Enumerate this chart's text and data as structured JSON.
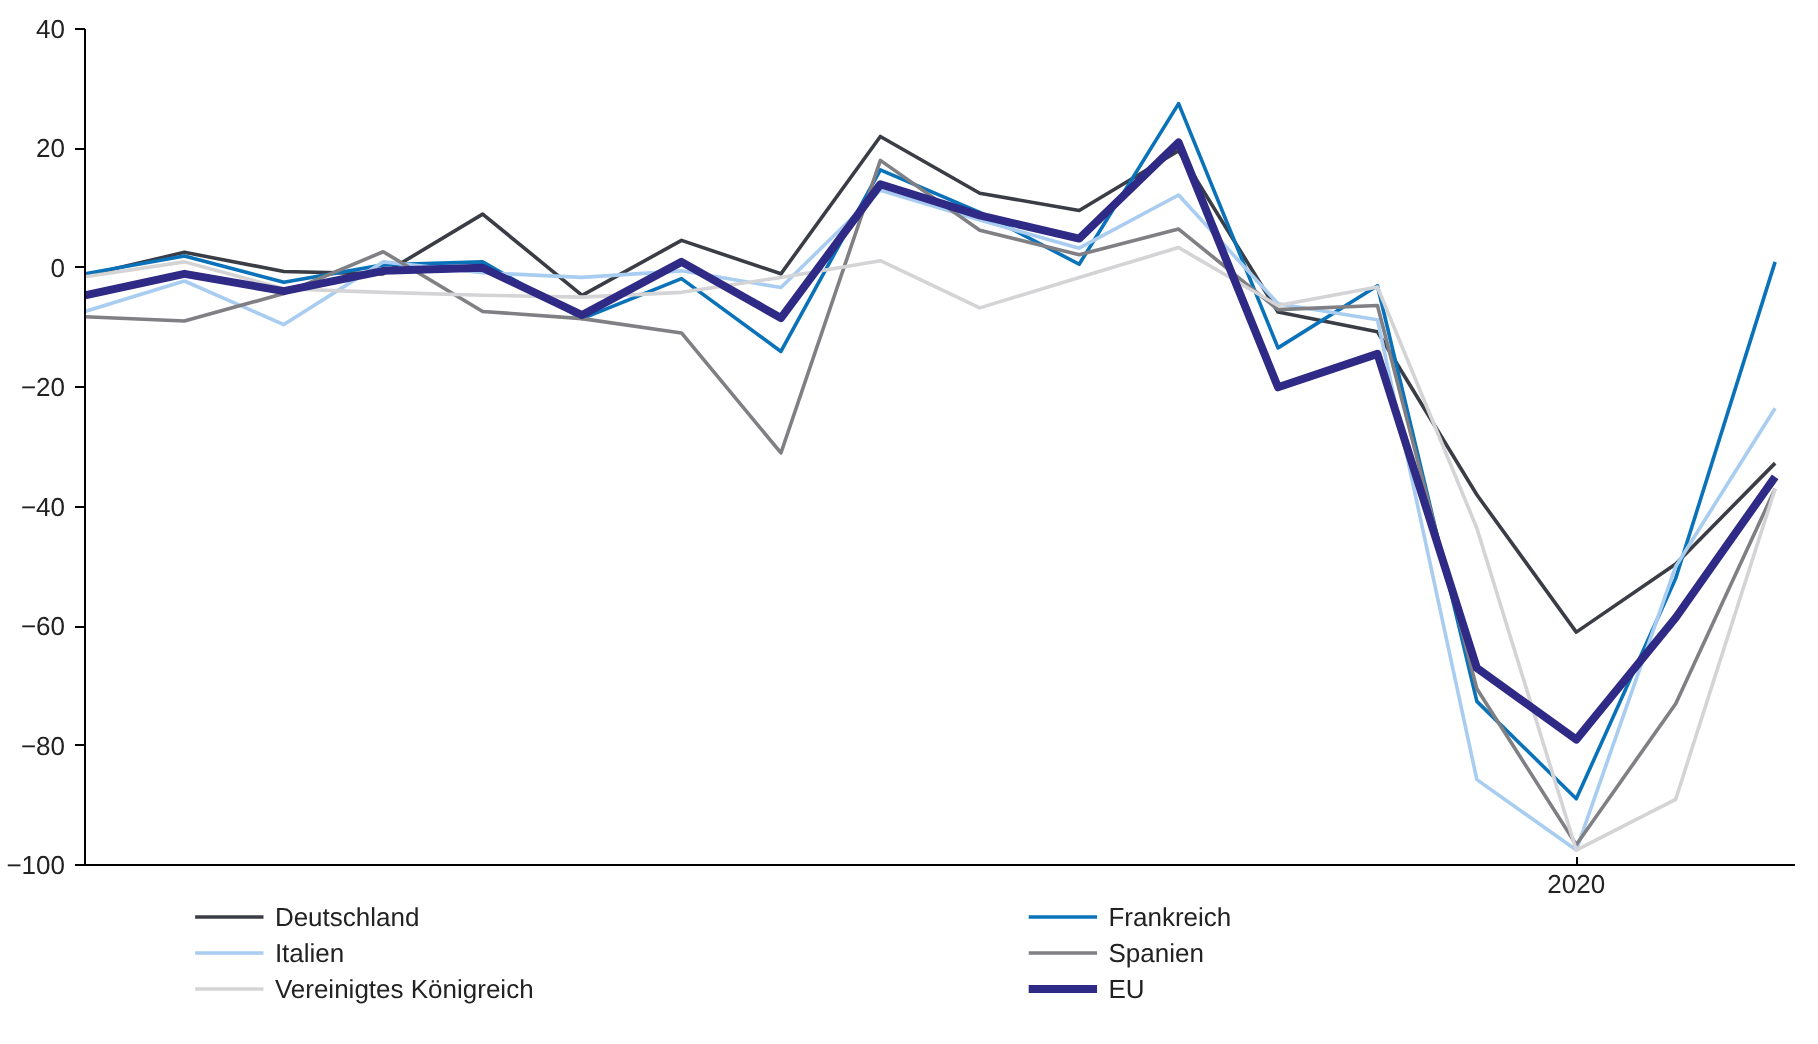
{
  "chart_data": {
    "type": "line",
    "categories": [
      null,
      null,
      null,
      null,
      null,
      null,
      null,
      null,
      null,
      null,
      null,
      null,
      null,
      null,
      null,
      "2020",
      null,
      null
    ],
    "ylim": [
      -100,
      40
    ],
    "yticks": [
      -100,
      -80,
      -60,
      -40,
      -20,
      0,
      20,
      40
    ],
    "legend": "bottom",
    "line_style": "solid",
    "series": [
      {
        "name": "Deutschland",
        "color": "#3a3d45",
        "values": [
          -1.3,
          2.6,
          -0.6,
          -1,
          9,
          -4.6,
          4.6,
          -1,
          22,
          12.5,
          9.6,
          19.6,
          -7.4,
          -10.7,
          -38,
          -61,
          -49.6,
          -32.7
        ]
      },
      {
        "name": "Frankreich",
        "color": "#0a72b8",
        "values": [
          -1,
          2,
          -2.4,
          0.5,
          1,
          -8.5,
          -1.8,
          -14,
          16.4,
          9.3,
          0.6,
          27.5,
          -13.4,
          -3,
          -72.6,
          -88.9,
          -52,
          1
        ]
      },
      {
        "name": "Italien",
        "color": "#a9cdf0",
        "values": [
          -7.3,
          -2.2,
          -9.5,
          1,
          -0.8,
          -1.6,
          -0.5,
          -3.3,
          13,
          8,
          3.3,
          12.2,
          -6,
          -8.7,
          -85.7,
          -97.5,
          -50,
          -23.5
        ]
      },
      {
        "name": "Spanien",
        "color": "#7f7f84",
        "values": [
          -8.2,
          -8.9,
          -4.3,
          2.7,
          -7.3,
          -8.5,
          -10.9,
          -31,
          18,
          6.3,
          2.2,
          6.5,
          -7,
          -6.3,
          -70.5,
          -96.6,
          -73,
          -37
        ]
      },
      {
        "name": "Vereinigtes Königreich",
        "color": "#d4d4d6",
        "values": [
          -1.5,
          1,
          -3.5,
          -4.1,
          -4.6,
          -4.9,
          -4.1,
          -1.6,
          1.2,
          -6.7,
          -1.6,
          3.4,
          -6.3,
          -3.2,
          -43.6,
          -97.5,
          -89,
          -37
        ]
      },
      {
        "name": "EU",
        "color": "#2e2a85",
        "values": [
          -4.6,
          -1,
          -3.9,
          -0.5,
          0,
          -7.9,
          1,
          -8.4,
          14,
          8.8,
          4.9,
          21,
          -20,
          -14.4,
          -67,
          -79,
          -58.6,
          -35
        ]
      }
    ]
  }
}
